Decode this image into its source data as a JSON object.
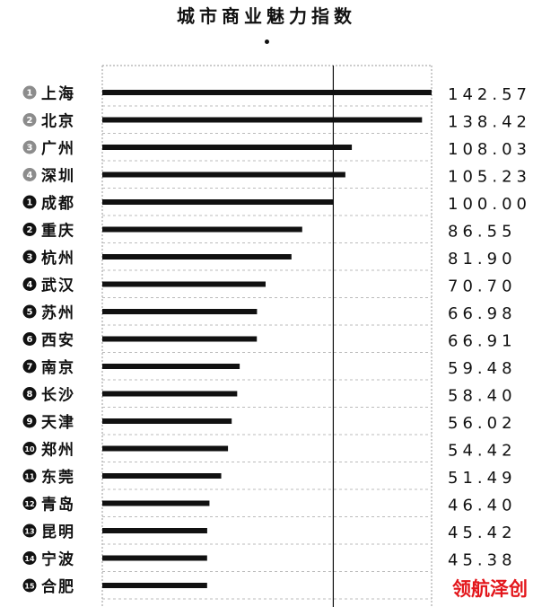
{
  "chart_data": {
    "type": "bar",
    "orientation": "horizontal",
    "title": "城市商业魅力指数",
    "categories": [
      "上海",
      "北京",
      "广州",
      "深圳",
      "成都",
      "重庆",
      "杭州",
      "武汉",
      "苏州",
      "西安",
      "南京",
      "长沙",
      "天津",
      "郑州",
      "东莞",
      "青岛",
      "昆明",
      "宁波",
      "合肥"
    ],
    "rank_labels": [
      "1",
      "2",
      "3",
      "4",
      "1",
      "2",
      "3",
      "4",
      "5",
      "6",
      "7",
      "8",
      "9",
      "10",
      "11",
      "12",
      "13",
      "14",
      "15"
    ],
    "values": [
      142.57,
      138.42,
      108.03,
      105.23,
      100.0,
      86.55,
      81.9,
      70.7,
      66.98,
      66.91,
      59.48,
      58.4,
      56.02,
      54.42,
      51.49,
      46.4,
      45.42,
      45.38,
      45.38
    ],
    "value_labels": [
      "142.57",
      "138.42",
      "108.03",
      "105.23",
      "100.00",
      "86.55",
      "81.90",
      "70.70",
      "66.98",
      "66.91",
      "59.48",
      "58.40",
      "56.02",
      "54.42",
      "51.49",
      "46.40",
      "45.42",
      "45.38",
      ""
    ],
    "reference_line": 100,
    "xlim": [
      0,
      142.57
    ],
    "grid": "dashed horizontal",
    "colors": {
      "bar": "#111111",
      "rank_tier1": "#8c8c8c",
      "rank_other": "#111111",
      "watermark": "#e3161b"
    }
  },
  "watermark": "领航泽创"
}
